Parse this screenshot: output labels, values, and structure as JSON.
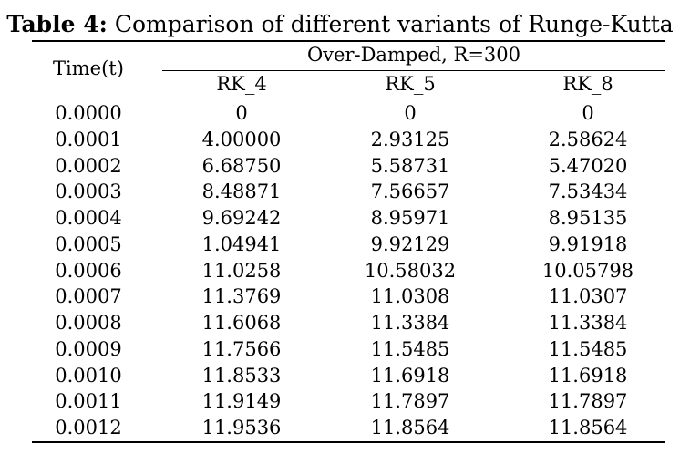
{
  "caption": {
    "label": "Table 4:",
    "text": " Comparison of different variants of Runge-Kutta"
  },
  "table": {
    "time_header": "Time(t)",
    "group_header": "Over-Damped, R=300",
    "columns": [
      "RK_4",
      "RK_5",
      "RK_8"
    ],
    "rows": [
      {
        "time": "0.0000",
        "rk4": "0",
        "rk5": "0",
        "rk8": "0"
      },
      {
        "time": "0.0001",
        "rk4": "4.00000",
        "rk5": "2.93125",
        "rk8": "2.58624"
      },
      {
        "time": "0.0002",
        "rk4": "6.68750",
        "rk5": "5.58731",
        "rk8": "5.47020"
      },
      {
        "time": "0.0003",
        "rk4": "8.48871",
        "rk5": "7.56657",
        "rk8": "7.53434"
      },
      {
        "time": "0.0004",
        "rk4": "9.69242",
        "rk5": "8.95971",
        "rk8": "8.95135"
      },
      {
        "time": "0.0005",
        "rk4": "1.04941",
        "rk5": "9.92129",
        "rk8": "9.91918"
      },
      {
        "time": "0.0006",
        "rk4": "11.0258",
        "rk5": "10.58032",
        "rk8": "10.05798"
      },
      {
        "time": "0.0007",
        "rk4": "11.3769",
        "rk5": "11.0308",
        "rk8": "11.0307"
      },
      {
        "time": "0.0008",
        "rk4": "11.6068",
        "rk5": "11.3384",
        "rk8": "11.3384"
      },
      {
        "time": "0.0009",
        "rk4": "11.7566",
        "rk5": "11.5485",
        "rk8": "11.5485"
      },
      {
        "time": "0.0010",
        "rk4": "11.8533",
        "rk5": "11.6918",
        "rk8": "11.6918"
      },
      {
        "time": "0.0011",
        "rk4": "11.9149",
        "rk5": "11.7897",
        "rk8": "11.7897"
      },
      {
        "time": "0.0012",
        "rk4": "11.9536",
        "rk5": "11.8564",
        "rk8": "11.8564"
      }
    ]
  }
}
